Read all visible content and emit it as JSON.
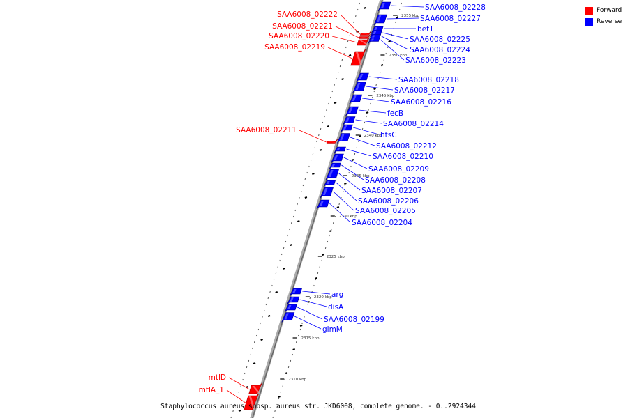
{
  "legend": {
    "forward": {
      "label": "Forward",
      "color": "#ff0000"
    },
    "reverse": {
      "label": "Reverse",
      "color": "#0000ff"
    }
  },
  "caption": "Staphylococcus aureus subsp. aureus str. JKD6008, complete genome. - 0..2924344",
  "tick_labels": [
    "2355 kbp",
    "2350 kbp",
    "2345 kbp",
    "2340 kbp",
    "2335 kbp",
    "2330 kbp",
    "2325 kbp",
    "2320 kbp",
    "2315 kbp",
    "2310 kbp"
  ],
  "genes_forward": [
    "SAA6008_02222",
    "SAA6008_02221",
    "SAA6008_02220",
    "SAA6008_02219",
    "SAA6008_02211",
    "mtlD",
    "mtlA_1"
  ],
  "genes_reverse": [
    "SAA6008_02228",
    "SAA6008_02227",
    "betT",
    "SAA6008_02225",
    "SAA6008_02224",
    "SAA6008_02223",
    "SAA6008_02218",
    "SAA6008_02217",
    "SAA6008_02216",
    "fecB",
    "SAA6008_02214",
    "htsC",
    "SAA6008_02212",
    "SAA6008_02210",
    "SAA6008_02209",
    "SAA6008_02208",
    "SAA6008_02207",
    "SAA6008_02206",
    "SAA6008_02205",
    "SAA6008_02204",
    "arg",
    "disA",
    "SAA6008_02199",
    "glmM"
  ]
}
